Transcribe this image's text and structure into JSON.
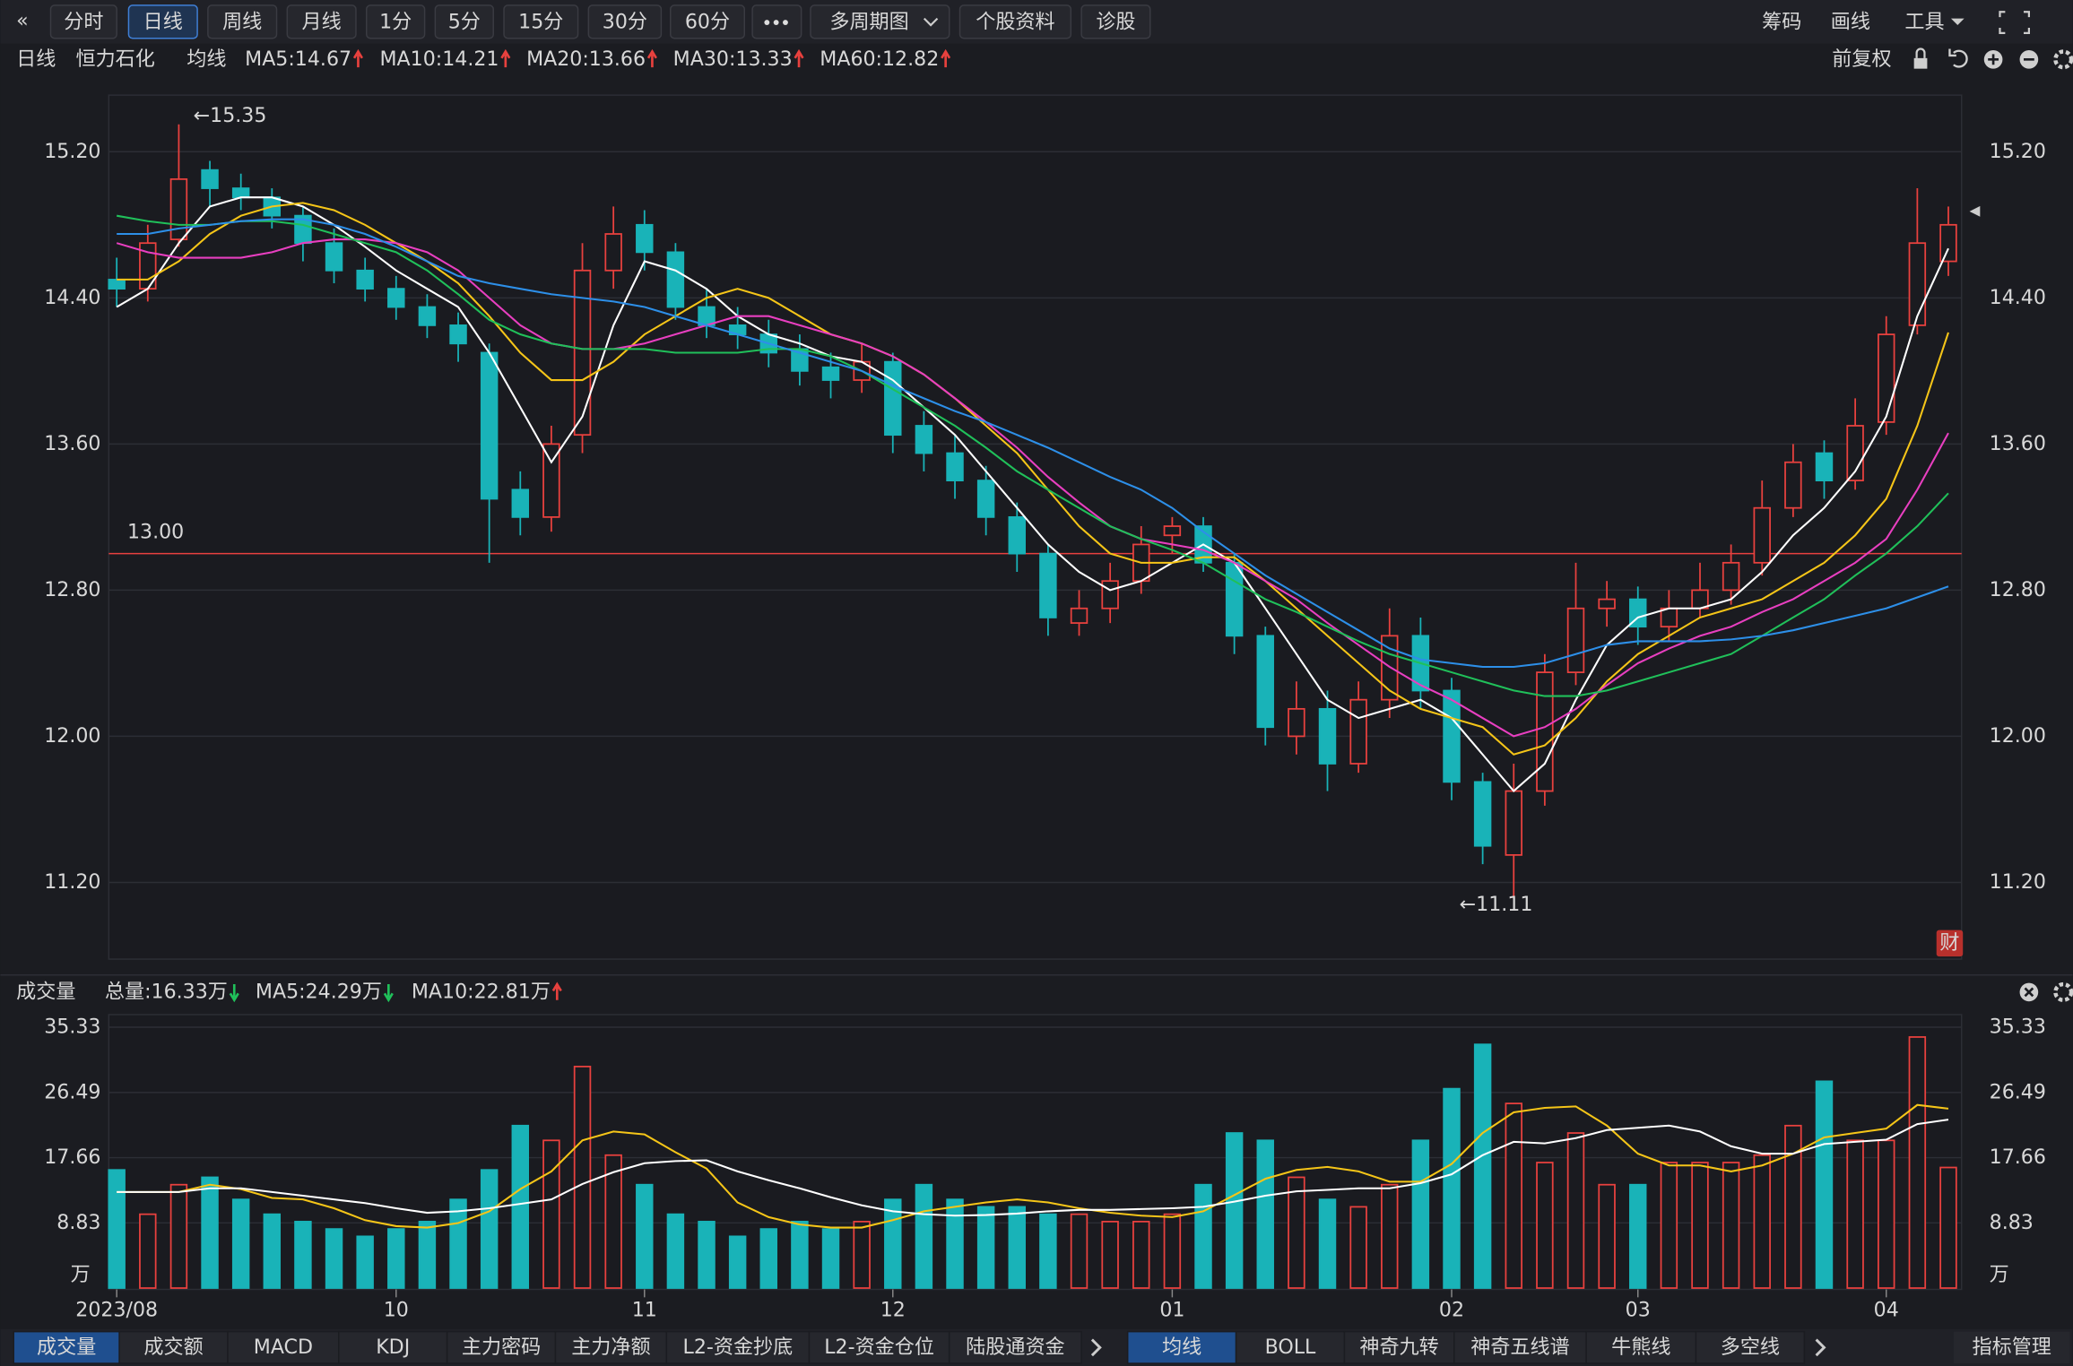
{
  "toolbar": {
    "left": [
      "分时",
      "日线",
      "周线",
      "月线",
      "1分",
      "5分",
      "15分",
      "30分",
      "60分",
      "多周期图",
      "个股资料",
      "诊股"
    ],
    "right": [
      "筹码",
      "画线",
      "工具"
    ]
  },
  "header": {
    "period": "日线",
    "stock": "恒力石化",
    "ma_title": "均线",
    "adjust": "前复权"
  },
  "chart_data": [
    {
      "type": "candlestick",
      "categories": [
        "2023/08",
        null,
        null,
        null,
        null,
        null,
        null,
        null,
        null,
        "10",
        null,
        null,
        null,
        null,
        null,
        null,
        null,
        "11",
        null,
        null,
        null,
        null,
        null,
        null,
        null,
        "12",
        null,
        null,
        null,
        null,
        null,
        null,
        null,
        null,
        "01",
        null,
        null,
        null,
        null,
        null,
        null,
        null,
        null,
        "02",
        null,
        null,
        null,
        null,
        null,
        "03",
        null,
        null,
        null,
        null,
        null,
        null,
        null,
        "04",
        null,
        null
      ],
      "open": [
        14.5,
        14.45,
        14.72,
        15.1,
        15.0,
        14.95,
        14.85,
        14.7,
        14.55,
        14.45,
        14.35,
        14.25,
        14.1,
        13.35,
        13.2,
        13.65,
        14.55,
        14.8,
        14.65,
        14.35,
        14.25,
        14.2,
        14.12,
        14.02,
        13.95,
        14.05,
        13.7,
        13.55,
        13.4,
        13.2,
        13.0,
        12.62,
        12.7,
        12.85,
        13.1,
        13.15,
        12.95,
        12.55,
        12.0,
        12.15,
        11.85,
        12.2,
        12.55,
        12.25,
        11.75,
        11.35,
        11.7,
        12.35,
        12.7,
        12.75,
        12.6,
        12.7,
        12.8,
        12.95,
        13.25,
        13.55,
        13.4,
        13.72,
        14.25,
        14.6
      ],
      "high": [
        14.62,
        14.8,
        15.35,
        15.15,
        15.08,
        15.0,
        14.9,
        14.78,
        14.62,
        14.52,
        14.42,
        14.32,
        14.15,
        13.45,
        13.7,
        14.7,
        14.9,
        14.88,
        14.7,
        14.45,
        14.35,
        14.28,
        14.2,
        14.1,
        14.15,
        14.1,
        13.78,
        13.65,
        13.48,
        13.28,
        13.05,
        12.8,
        12.95,
        13.15,
        13.2,
        13.2,
        13.0,
        12.6,
        12.3,
        12.25,
        12.3,
        12.7,
        12.65,
        12.32,
        11.8,
        11.85,
        12.45,
        12.95,
        12.85,
        12.82,
        12.8,
        12.95,
        13.05,
        13.4,
        13.6,
        13.62,
        13.85,
        14.3,
        15.0,
        14.9
      ],
      "low": [
        14.35,
        14.38,
        14.68,
        14.9,
        14.88,
        14.78,
        14.6,
        14.48,
        14.38,
        14.28,
        14.18,
        14.05,
        12.95,
        13.1,
        13.12,
        13.55,
        14.45,
        14.55,
        14.28,
        14.18,
        14.12,
        14.02,
        13.92,
        13.85,
        13.88,
        13.55,
        13.45,
        13.3,
        13.1,
        12.9,
        12.55,
        12.55,
        12.62,
        12.78,
        13.0,
        12.9,
        12.45,
        11.95,
        11.9,
        11.7,
        11.8,
        12.1,
        12.15,
        11.65,
        11.3,
        11.11,
        11.62,
        12.28,
        12.6,
        12.5,
        12.52,
        12.65,
        12.72,
        12.88,
        13.2,
        13.3,
        13.35,
        13.65,
        14.2,
        14.52
      ],
      "close": [
        14.45,
        14.7,
        15.05,
        15.0,
        14.95,
        14.85,
        14.7,
        14.55,
        14.45,
        14.35,
        14.25,
        14.15,
        13.3,
        13.2,
        13.6,
        14.55,
        14.75,
        14.65,
        14.35,
        14.25,
        14.2,
        14.1,
        14.0,
        13.95,
        14.05,
        13.65,
        13.55,
        13.4,
        13.2,
        13.0,
        12.65,
        12.7,
        12.85,
        13.05,
        13.15,
        12.95,
        12.55,
        12.05,
        12.15,
        11.85,
        12.2,
        12.55,
        12.25,
        11.75,
        11.4,
        11.7,
        12.35,
        12.7,
        12.75,
        12.6,
        12.7,
        12.8,
        12.95,
        13.25,
        13.5,
        13.4,
        13.7,
        14.2,
        14.7,
        14.8
      ],
      "series": [
        {
          "color": "#ffffff",
          "values": [
            14.35,
            14.45,
            14.7,
            14.9,
            14.95,
            14.95,
            14.9,
            14.8,
            14.68,
            14.55,
            14.45,
            14.35,
            14.1,
            13.8,
            13.5,
            13.75,
            14.25,
            14.6,
            14.55,
            14.45,
            14.3,
            14.2,
            14.15,
            14.08,
            14.05,
            13.95,
            13.8,
            13.65,
            13.45,
            13.25,
            13.05,
            12.9,
            12.8,
            12.85,
            12.95,
            13.05,
            12.95,
            12.7,
            12.45,
            12.2,
            12.1,
            12.15,
            12.2,
            12.1,
            11.9,
            11.7,
            11.85,
            12.2,
            12.5,
            12.65,
            12.7,
            12.7,
            12.75,
            12.9,
            13.1,
            13.25,
            13.45,
            13.75,
            14.3,
            14.67
          ]
        },
        {
          "color": "#f5c518",
          "values": [
            14.5,
            14.5,
            14.6,
            14.75,
            14.85,
            14.9,
            14.92,
            14.88,
            14.8,
            14.7,
            14.6,
            14.48,
            14.3,
            14.1,
            13.95,
            13.95,
            14.05,
            14.2,
            14.3,
            14.4,
            14.45,
            14.4,
            14.3,
            14.2,
            14.15,
            14.08,
            13.98,
            13.85,
            13.7,
            13.55,
            13.35,
            13.15,
            13.0,
            12.95,
            12.95,
            12.98,
            12.98,
            12.85,
            12.7,
            12.55,
            12.4,
            12.25,
            12.15,
            12.1,
            12.05,
            11.9,
            11.95,
            12.1,
            12.3,
            12.45,
            12.55,
            12.65,
            12.7,
            12.75,
            12.85,
            12.95,
            13.1,
            13.3,
            13.7,
            14.21
          ]
        },
        {
          "color": "#e83fc0",
          "values": [
            14.7,
            14.65,
            14.62,
            14.62,
            14.62,
            14.65,
            14.7,
            14.72,
            14.72,
            14.7,
            14.65,
            14.55,
            14.4,
            14.25,
            14.15,
            14.12,
            14.12,
            14.15,
            14.2,
            14.25,
            14.3,
            14.3,
            14.25,
            14.2,
            14.15,
            14.08,
            13.98,
            13.85,
            13.72,
            13.58,
            13.42,
            13.28,
            13.15,
            13.08,
            13.05,
            13.02,
            12.95,
            12.85,
            12.75,
            12.62,
            12.5,
            12.38,
            12.28,
            12.2,
            12.1,
            12.0,
            12.05,
            12.15,
            12.28,
            12.4,
            12.48,
            12.55,
            12.6,
            12.68,
            12.75,
            12.85,
            12.95,
            13.08,
            13.35,
            13.66
          ]
        },
        {
          "color": "#20c05a",
          "values": [
            14.85,
            14.82,
            14.8,
            14.8,
            14.82,
            14.82,
            14.8,
            14.75,
            14.7,
            14.65,
            14.55,
            14.42,
            14.28,
            14.2,
            14.15,
            14.12,
            14.12,
            14.12,
            14.1,
            14.1,
            14.1,
            14.12,
            14.12,
            14.08,
            14.0,
            13.9,
            13.8,
            13.7,
            13.58,
            13.45,
            13.35,
            13.25,
            13.15,
            13.08,
            13.02,
            12.95,
            12.85,
            12.75,
            12.68,
            12.6,
            12.52,
            12.45,
            12.4,
            12.35,
            12.3,
            12.25,
            12.22,
            12.22,
            12.25,
            12.3,
            12.35,
            12.4,
            12.45,
            12.55,
            12.65,
            12.75,
            12.88,
            13.0,
            13.15,
            13.33
          ]
        },
        {
          "color": "#2d8fe8",
          "values": [
            14.75,
            14.75,
            14.78,
            14.8,
            14.82,
            14.83,
            14.83,
            14.8,
            14.75,
            14.68,
            14.6,
            14.52,
            14.48,
            14.45,
            14.42,
            14.4,
            14.38,
            14.35,
            14.3,
            14.25,
            14.2,
            14.15,
            14.1,
            14.05,
            14.0,
            13.92,
            13.85,
            13.78,
            13.72,
            13.65,
            13.58,
            13.5,
            13.42,
            13.35,
            13.25,
            13.12,
            13.0,
            12.88,
            12.78,
            12.68,
            12.58,
            12.48,
            12.42,
            12.4,
            12.38,
            12.38,
            12.4,
            12.45,
            12.5,
            12.52,
            12.52,
            12.52,
            12.53,
            12.55,
            12.58,
            12.62,
            12.66,
            12.7,
            12.76,
            12.82
          ]
        }
      ],
      "legend": [
        "MA5:14.67",
        "MA10:14.21",
        "MA20:13.66",
        "MA30:13.33",
        "MA60:12.82"
      ],
      "ylim": [
        10.78,
        15.51
      ],
      "yticks": [
        {
          "value": 11.2,
          "label": "11.20"
        },
        {
          "value": 12.0,
          "label": "12.00"
        },
        {
          "value": 12.8,
          "label": "12.80"
        },
        {
          "value": 13.6,
          "label": "13.60"
        },
        {
          "value": 14.4,
          "label": "14.40"
        },
        {
          "value": 15.2,
          "label": "15.20"
        }
      ],
      "grid": true,
      "up_color": "#e8413e",
      "down_color": "#19b3b8",
      "reference_line": {
        "value": 13.0,
        "label": "13.00"
      },
      "annotations": [
        "←15.35",
        "←11.11"
      ],
      "badge": "财"
    },
    {
      "type": "bar",
      "title": "成交量",
      "legend": [
        "总量:16.33万",
        "MA5:24.29万",
        "MA10:22.81万"
      ],
      "values": [
        16,
        10,
        14,
        15,
        12,
        10,
        9,
        8,
        7,
        8,
        9,
        12,
        16,
        22,
        20,
        30,
        18,
        14,
        10,
        9,
        7,
        8,
        9,
        8,
        9,
        12,
        14,
        12,
        11,
        11,
        10,
        10,
        9,
        9,
        10,
        14,
        21,
        20,
        15,
        12,
        11,
        14,
        20,
        27,
        33,
        25,
        17,
        21,
        14,
        14,
        17,
        17,
        17,
        18,
        22,
        28,
        20,
        20,
        34,
        16.33
      ],
      "series": [
        {
          "color": "#f5c518",
          "values": [
            13,
            13,
            13,
            14,
            13.4,
            12.2,
            12,
            10.8,
            9.2,
            8.4,
            8.2,
            8.8,
            10.4,
            13.4,
            15.8,
            20,
            21.2,
            20.8,
            18.4,
            16.2,
            11.6,
            9.6,
            8.6,
            8.2,
            8.2,
            9.2,
            10.4,
            11,
            11.6,
            12,
            11.6,
            10.8,
            10.2,
            9.8,
            9.6,
            10.4,
            12.6,
            14.8,
            16,
            16.4,
            15.8,
            14.4,
            14.4,
            16.8,
            21,
            23.8,
            24.4,
            24.6,
            22,
            18.2,
            16.6,
            16.6,
            15.8,
            16.6,
            18.2,
            20.4,
            21,
            21.6,
            24.8,
            24.29
          ]
        },
        {
          "color": "#ffffff",
          "values": [
            13,
            13,
            13,
            13.5,
            13.5,
            13,
            12.5,
            12,
            11.5,
            10.8,
            10.2,
            10.4,
            10.8,
            11.4,
            12,
            14.1,
            15.7,
            16.9,
            17.2,
            17.3,
            15.8,
            14.6,
            13.5,
            12.3,
            11.2,
            10.4,
            10,
            9.8,
            9.9,
            10.1,
            10.4,
            10.6,
            10.6,
            10.7,
            10.8,
            11,
            11.7,
            12.5,
            13.1,
            13.3,
            13.5,
            13.5,
            14.2,
            15.4,
            18,
            19.8,
            19.6,
            20.3,
            21.4,
            21.7,
            22,
            21.2,
            19.2,
            18.2,
            18.2,
            19.5,
            19.8,
            20.1,
            22.2,
            22.81
          ]
        }
      ],
      "ylim": [
        0,
        36.5
      ],
      "yticks": [
        8.83,
        17.66,
        26.49,
        35.33
      ],
      "grid": true,
      "unit": "万"
    }
  ],
  "tabs": {
    "left": [
      "成交量",
      "成交额",
      "MACD",
      "KDJ",
      "主力密码",
      "主力净额",
      "L2-资金抄底",
      "L2-资金仓位",
      "陆股通资金"
    ],
    "middle": [
      "均线",
      "BOLL",
      "神奇九转",
      "神奇五线谱",
      "牛熊线",
      "多空线"
    ],
    "right": "指标管理"
  }
}
